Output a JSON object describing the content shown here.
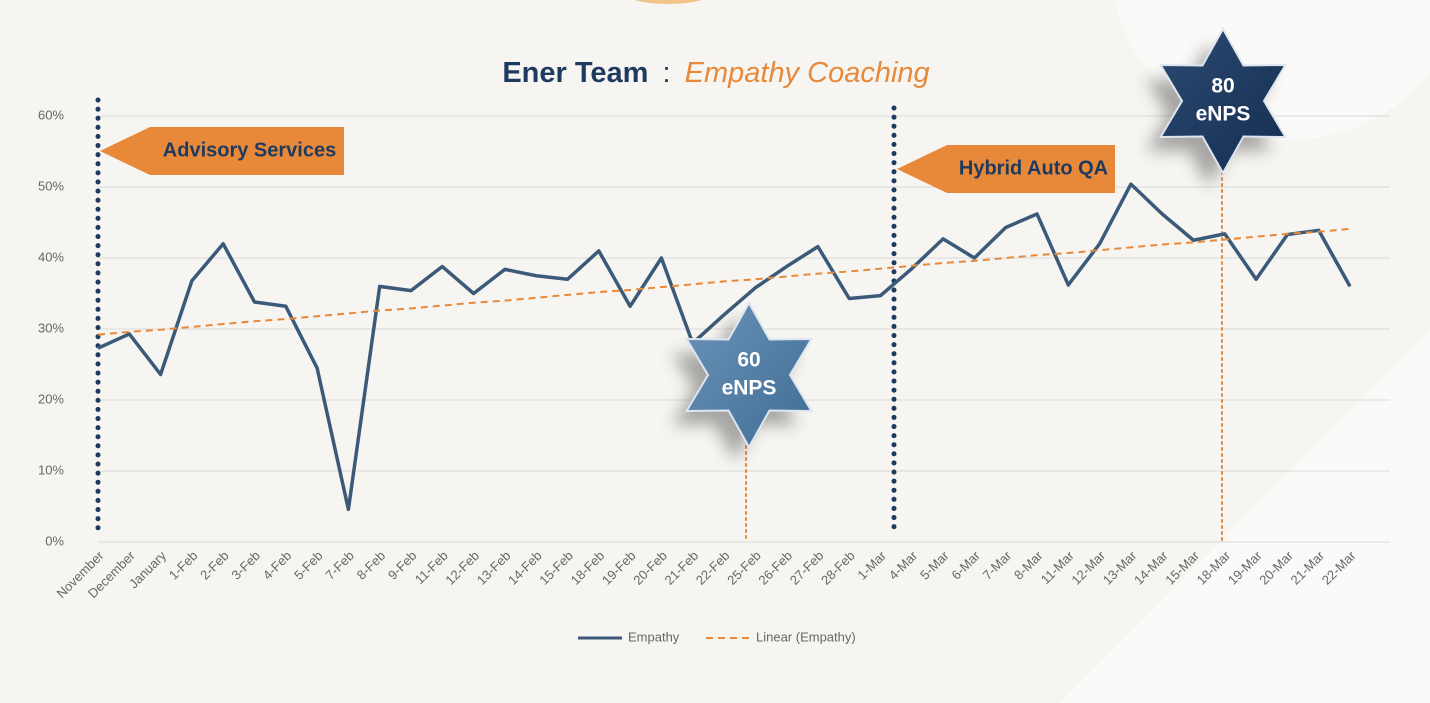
{
  "chart_data": {
    "type": "line",
    "title": "Ener Team",
    "title_separator": ":",
    "subtitle": "Empathy Coaching",
    "categories": [
      "November",
      "December",
      "January",
      "1-Feb",
      "2-Feb",
      "3-Feb",
      "4-Feb",
      "5-Feb",
      "7-Feb",
      "8-Feb",
      "9-Feb",
      "11-Feb",
      "12-Feb",
      "13-Feb",
      "14-Feb",
      "15-Feb",
      "18-Feb",
      "19-Feb",
      "20-Feb",
      "21-Feb",
      "22-Feb",
      "25-Feb",
      "26-Feb",
      "27-Feb",
      "28-Feb",
      "1-Mar",
      "4-Mar",
      "5-Mar",
      "6-Mar",
      "7-Mar",
      "8-Mar",
      "11-Mar",
      "12-Mar",
      "13-Mar",
      "14-Mar",
      "15-Mar",
      "18-Mar",
      "19-Mar",
      "20-Mar",
      "21-Mar",
      "22-Mar"
    ],
    "series": [
      {
        "name": "Empathy",
        "color": "#3b5a7a",
        "style": "solid",
        "values": [
          27.3,
          29.3,
          23.6,
          36.8,
          42,
          33.8,
          33.2,
          24.5,
          4.6,
          36,
          35.4,
          38.8,
          35,
          38.4,
          37.5,
          37,
          41,
          33.2,
          40,
          28,
          32,
          35.8,
          38.8,
          41.6,
          34.3,
          34.7,
          38.5,
          42.7,
          40,
          44.3,
          46.2,
          36.2,
          42,
          50.4,
          46.2,
          42.5,
          43.4,
          37,
          43.3,
          43.9,
          36
        ]
      },
      {
        "name": "Linear (Empathy)",
        "color": "#e8893a",
        "style": "dashed",
        "values": [
          29.2,
          29.6,
          29.9,
          30.3,
          30.7,
          31.1,
          31.4,
          31.8,
          32.2,
          32.6,
          32.9,
          33.3,
          33.7,
          34.0,
          34.4,
          34.8,
          35.2,
          35.5,
          35.9,
          36.3,
          36.7,
          37.0,
          37.4,
          37.8,
          38.1,
          38.5,
          38.9,
          39.3,
          39.6,
          40.0,
          40.4,
          40.7,
          41.1,
          41.5,
          41.9,
          42.2,
          42.6,
          43.0,
          43.4,
          43.7,
          44.1
        ]
      }
    ],
    "ylim": [
      0,
      60
    ],
    "yticks": [
      {
        "value": 0,
        "label": "0%"
      },
      {
        "value": 10,
        "label": "10%"
      },
      {
        "value": 20,
        "label": "20%"
      },
      {
        "value": 30,
        "label": "30%"
      },
      {
        "value": 40,
        "label": "40%"
      },
      {
        "value": 50,
        "label": "50%"
      },
      {
        "value": 60,
        "label": "60%"
      }
    ],
    "grid": true,
    "legend": "bottom",
    "annotations": [
      "Advisory Services",
      "Hybrid Auto QA"
    ],
    "stars": [
      {
        "value": 60,
        "unit": "eNPS"
      },
      {
        "value": 80,
        "unit": "eNPS"
      }
    ]
  }
}
